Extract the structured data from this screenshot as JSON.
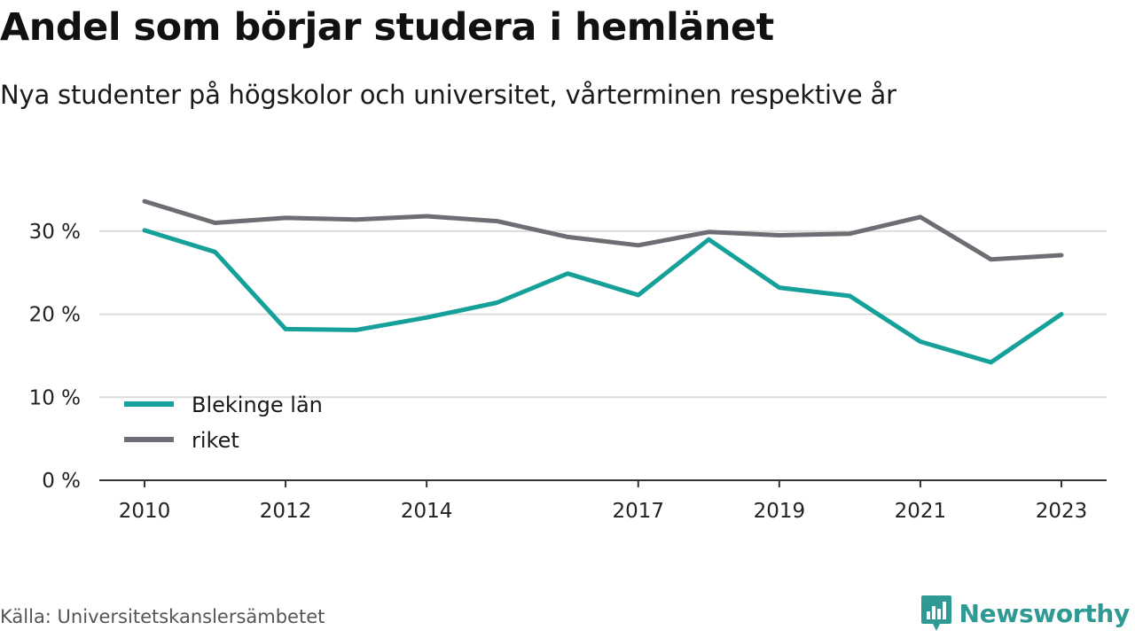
{
  "title": "Andel som börjar studera i hemlänet",
  "subtitle": "Nya studenter på högskolor och universitet, vårterminen respektive år",
  "source": "Källa: Universitetskanslersämbetet",
  "brand": {
    "name": "Newsworthy",
    "icon": "bar-chart-pin-icon",
    "color": "#2f9a93"
  },
  "chart_data": {
    "type": "line",
    "x": [
      2010,
      2011,
      2012,
      2013,
      2014,
      2015,
      2016,
      2017,
      2018,
      2019,
      2020,
      2021,
      2022,
      2023
    ],
    "x_tick_labels": [
      "2010",
      "2012",
      "2014",
      "2017",
      "2019",
      "2021",
      "2023"
    ],
    "y_tick_labels": [
      "0 %",
      "10 %",
      "20 %",
      "30 %"
    ],
    "ylim": [
      0,
      35
    ],
    "yticks": [
      0,
      10,
      20,
      30
    ],
    "grid": true,
    "legend_position": "bottom-left",
    "series": [
      {
        "name": "Blekinge län",
        "color": "#15a19a",
        "values": [
          30.1,
          27.5,
          18.2,
          18.1,
          19.6,
          21.4,
          24.9,
          22.3,
          29.0,
          23.2,
          22.2,
          16.7,
          14.2,
          20.0
        ]
      },
      {
        "name": "riket",
        "color": "#6e6d73",
        "values": [
          33.6,
          31.0,
          31.6,
          31.4,
          31.8,
          31.2,
          29.3,
          28.3,
          29.9,
          29.5,
          29.7,
          31.7,
          26.6,
          27.1
        ]
      }
    ]
  }
}
